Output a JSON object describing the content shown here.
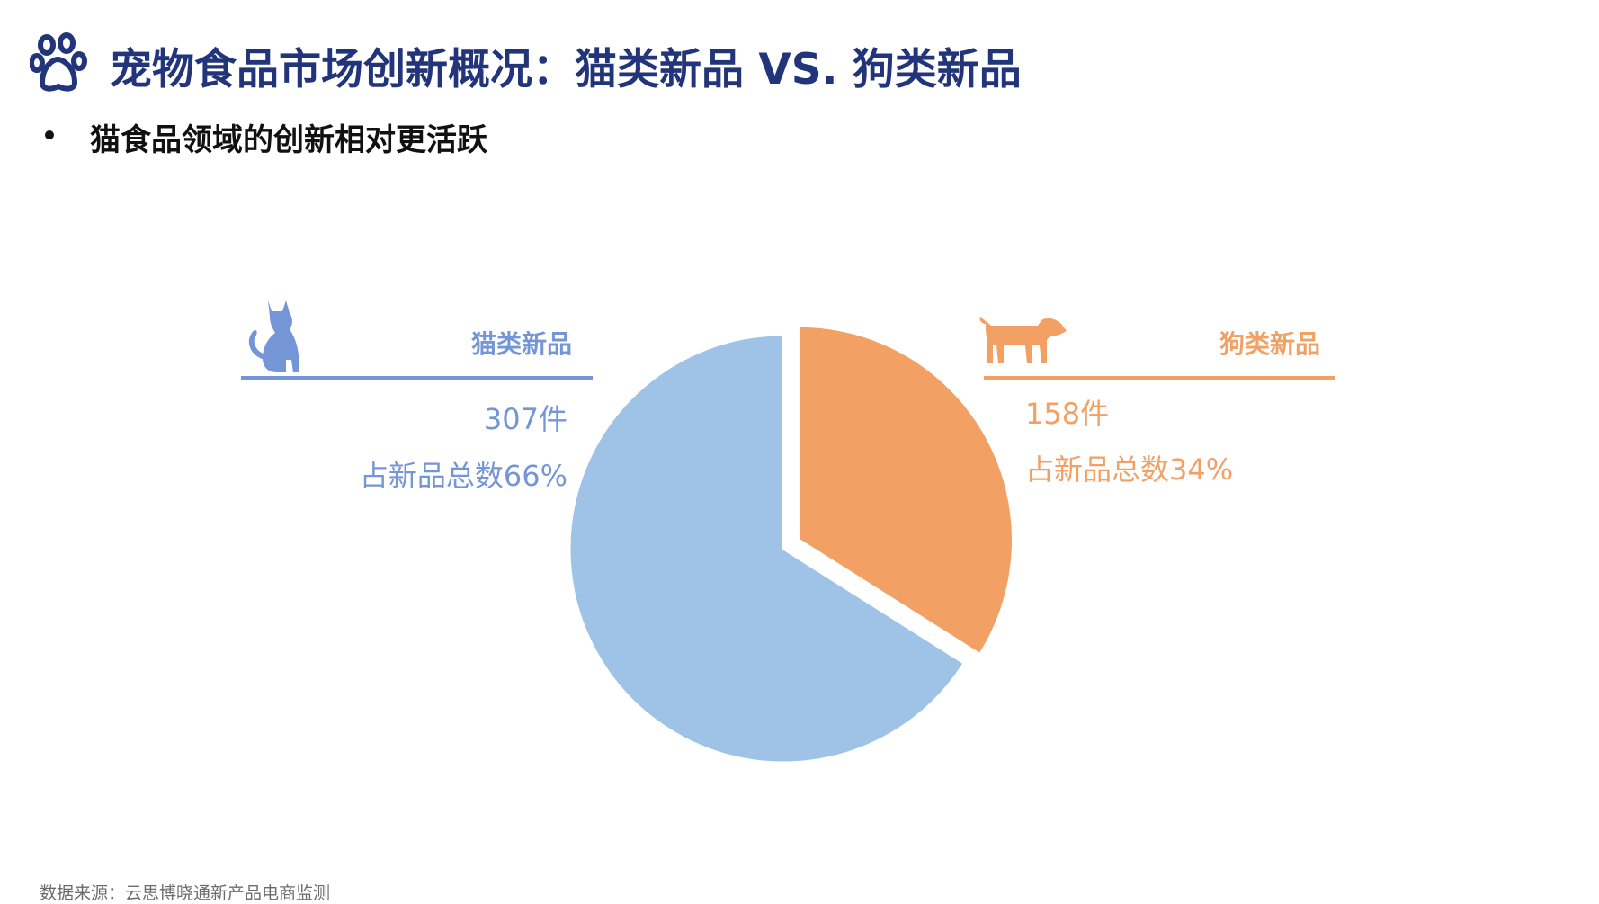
{
  "header": {
    "title": "宠物食品市场创新概况：猫类新品 VS. 狗类新品",
    "subtitle": "猫食品领域的创新相对更活跃",
    "icon": "paw-icon",
    "title_color": "#23357a"
  },
  "chart_data": {
    "type": "pie",
    "title": "",
    "series": [
      {
        "name": "猫类新品",
        "value": 307,
        "share": 66,
        "count_label": "307件",
        "share_label": "占新品总数66%",
        "color": "#9fc3e6",
        "accent": "#7596d6",
        "icon": "cat-icon"
      },
      {
        "name": "狗类新品",
        "value": 158,
        "share": 34,
        "count_label": "158件",
        "share_label": "占新品总数34%",
        "color": "#f2a064",
        "accent": "#f2a064",
        "icon": "dog-icon"
      }
    ],
    "exploded": "狗类新品",
    "legend": "callouts left and right"
  },
  "footer": {
    "source": "数据来源：云思博晓通新产品电商监测"
  }
}
